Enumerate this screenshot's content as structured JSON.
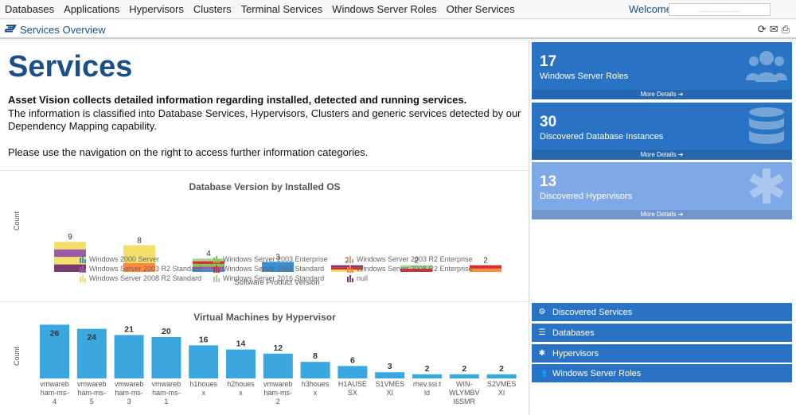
{
  "topnav": {
    "items": [
      "Databases",
      "Applications",
      "Hypervisors",
      "Clusters",
      "Terminal Services",
      "Windows Server Roles",
      "Other Services"
    ],
    "welcome": "Welcome",
    "user": "......................"
  },
  "subbar": {
    "title": "Services Overview"
  },
  "main": {
    "heading": "Services",
    "intro_bold": "Asset Vision collects detailed information regarding installed, detected and running services.",
    "intro_text": "The information is classified into Database Services, Hypervisors, Clusters and generic services detected by our Dependency Mapping capability.",
    "intro_nav": "Please use the navigation on the right to access further information categories."
  },
  "chart_data": [
    {
      "type": "bar",
      "title": "Database Version by Installed OS",
      "xlabel": "Software Product Version",
      "ylabel": "Count",
      "totals": [
        9,
        8,
        4,
        3,
        2,
        2,
        2
      ],
      "series": [
        {
          "name": "Windows 2000 Server",
          "color": "#3a8fd1"
        },
        {
          "name": "Windows Server 2003 Enterprise",
          "color": "#8bc34a"
        },
        {
          "name": "Windows Server 2003 R2 Enterprise",
          "color": "#c9a88e"
        },
        {
          "name": "Windows Server 2003 R2 Standard",
          "color": "#9a5aa8"
        },
        {
          "name": "Windows Server 2003 Standard",
          "color": "#d32f2f"
        },
        {
          "name": "Windows Server 2008 R2 Enterprise",
          "color": "#ff8a3d"
        },
        {
          "name": "Windows Server 2008 R2 Standard",
          "color": "#f3e06b"
        },
        {
          "name": "Windows Server 2016 Standard",
          "color": "#a6d79a"
        },
        {
          "name": "null",
          "color": "#7b3a6e"
        }
      ]
    },
    {
      "type": "bar",
      "title": "Virtual Machines by Hypervisor",
      "ylabel": "Count",
      "categories": [
        "vmwareb ham-ms- 4",
        "vmwareb ham-ms- 5",
        "vmwareb ham-ms- 3",
        "vmwareb ham-ms- 1",
        "h1houes x",
        "h2houes x",
        "vmwareb ham-ms- 2",
        "h3houes x",
        "H1AUSE SX",
        "S1VMES XI",
        "rhev.ssi.t ld",
        "WIN- WLYMBV I6SMR",
        "S2VMES XI"
      ],
      "values": [
        26,
        24,
        21,
        20,
        16,
        14,
        12,
        8,
        6,
        3,
        2,
        2,
        2
      ],
      "color": "#3aa7df"
    }
  ],
  "tiles": [
    {
      "num": "17",
      "label": "Windows Server Roles",
      "more": "More Details"
    },
    {
      "num": "30",
      "label": "Discovered Database Instances",
      "more": "More Details"
    },
    {
      "num": "13",
      "label": "Discovered Hypervisors",
      "more": "More Details"
    }
  ],
  "nav": [
    "Discovered Services",
    "Databases",
    "Hypervisors",
    "Windows Server Roles"
  ],
  "colors": {
    "primary": "#2a73c4",
    "tile_light": "#7fa9e6",
    "heading": "#1b4f8a"
  }
}
